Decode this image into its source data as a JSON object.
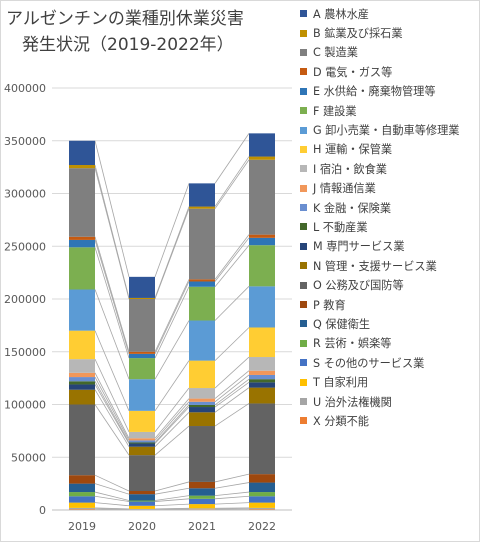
{
  "chart_data": {
    "type": "bar",
    "stacked": true,
    "title_line1": "アルゼンチンの業種別休業災害",
    "title_line2": "発生状況（2019-2022年）",
    "categories": [
      "2019",
      "2020",
      "2021",
      "2022"
    ],
    "ylim": [
      0,
      400000
    ],
    "yticks": [
      "0",
      "50000",
      "100000",
      "150000",
      "200000",
      "250000",
      "300000",
      "350000",
      "400000"
    ],
    "grid": true,
    "legend_position": "right",
    "series_lines": true,
    "series": [
      {
        "name": "X 分類不能",
        "color": "#ED7D31",
        "values": [
          1000,
          500,
          800,
          1000
        ]
      },
      {
        "name": "U 治外法権機関",
        "color": "#A5A5A5",
        "values": [
          1000,
          500,
          800,
          1000
        ]
      },
      {
        "name": "T 自家利用",
        "color": "#FFC000",
        "values": [
          5000,
          3000,
          4000,
          5000
        ]
      },
      {
        "name": "S その他のサービス業",
        "color": "#4472C4",
        "values": [
          6000,
          4000,
          5000,
          6000
        ]
      },
      {
        "name": "R 芸術・娯楽等",
        "color": "#70AD47",
        "values": [
          4000,
          1000,
          3000,
          4000
        ]
      },
      {
        "name": "Q 保健衛生",
        "color": "#255E91",
        "values": [
          8000,
          6000,
          7000,
          9000
        ]
      },
      {
        "name": "P 教育",
        "color": "#9E480E",
        "values": [
          8000,
          3000,
          6000,
          8000
        ]
      },
      {
        "name": "O 公務及び国防等",
        "color": "#636363",
        "values": [
          67000,
          34000,
          53000,
          67000
        ]
      },
      {
        "name": "N 管理・支援サービス業",
        "color": "#997300",
        "values": [
          14000,
          8000,
          13000,
          15000
        ]
      },
      {
        "name": "M 専門サービス業",
        "color": "#264478",
        "values": [
          5000,
          3000,
          5000,
          5000
        ]
      },
      {
        "name": "L 不動産業",
        "color": "#43682B",
        "values": [
          3000,
          1000,
          2000,
          3000
        ]
      },
      {
        "name": "K 金融・保険業",
        "color": "#698ED0",
        "values": [
          4000,
          2000,
          3000,
          4000
        ]
      },
      {
        "name": "J 情報通信業",
        "color": "#F1975A",
        "values": [
          4000,
          2000,
          3000,
          4000
        ]
      },
      {
        "name": "I 宿泊・飲食業",
        "color": "#B7B7B7",
        "values": [
          13000,
          6000,
          10000,
          13000
        ]
      },
      {
        "name": "H 運輸・保管業",
        "color": "#FFCD33",
        "values": [
          27000,
          20000,
          26000,
          28000
        ]
      },
      {
        "name": "G 卸小売業・自動車等修理業",
        "color": "#5B9BD5",
        "values": [
          39000,
          30000,
          38000,
          39000
        ]
      },
      {
        "name": "F 建設業",
        "color": "#7CAF50",
        "values": [
          40000,
          20000,
          32000,
          39000
        ]
      },
      {
        "name": "E 水供給・廃棄物管理等",
        "color": "#2E75B6",
        "values": [
          7000,
          4000,
          5000,
          7000
        ]
      },
      {
        "name": "D 電気・ガス等",
        "color": "#C55A11",
        "values": [
          3000,
          2000,
          2000,
          3000
        ]
      },
      {
        "name": "C 製造業",
        "color": "#7F7F7F",
        "values": [
          65000,
          50000,
          67000,
          71000
        ]
      },
      {
        "name": "B 鉱業及び採石業",
        "color": "#BF9000",
        "values": [
          3000,
          1000,
          2000,
          3000
        ]
      },
      {
        "name": "A 農林水産",
        "color": "#2F5597",
        "values": [
          23000,
          20000,
          22000,
          22000
        ]
      }
    ]
  }
}
